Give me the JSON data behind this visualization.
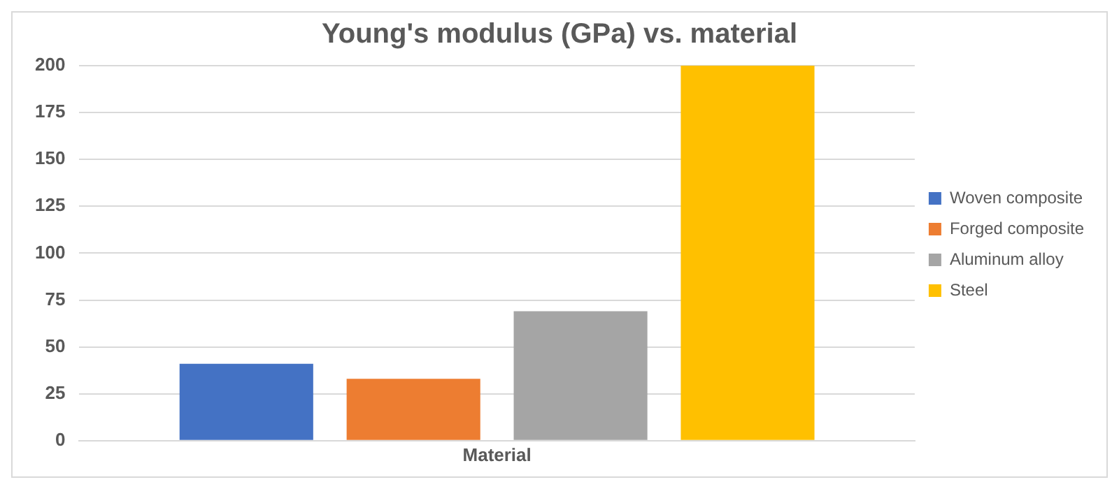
{
  "chart_data": {
    "type": "bar",
    "title": "Young's modulus (GPa) vs. material",
    "categories": [
      "Material"
    ],
    "series": [
      {
        "name": "Woven composite",
        "color": "#4472c4",
        "values": [
          41
        ]
      },
      {
        "name": "Forged composite",
        "color": "#ed7d31",
        "values": [
          33
        ]
      },
      {
        "name": "Aluminum alloy",
        "color": "#a5a5a5",
        "values": [
          69
        ]
      },
      {
        "name": "Steel",
        "color": "#ffc000",
        "values": [
          200
        ]
      }
    ],
    "ylim": [
      0,
      200
    ],
    "yticks": [
      0,
      25,
      50,
      75,
      100,
      125,
      150,
      175,
      200
    ],
    "grid": "y",
    "legend": "right"
  }
}
